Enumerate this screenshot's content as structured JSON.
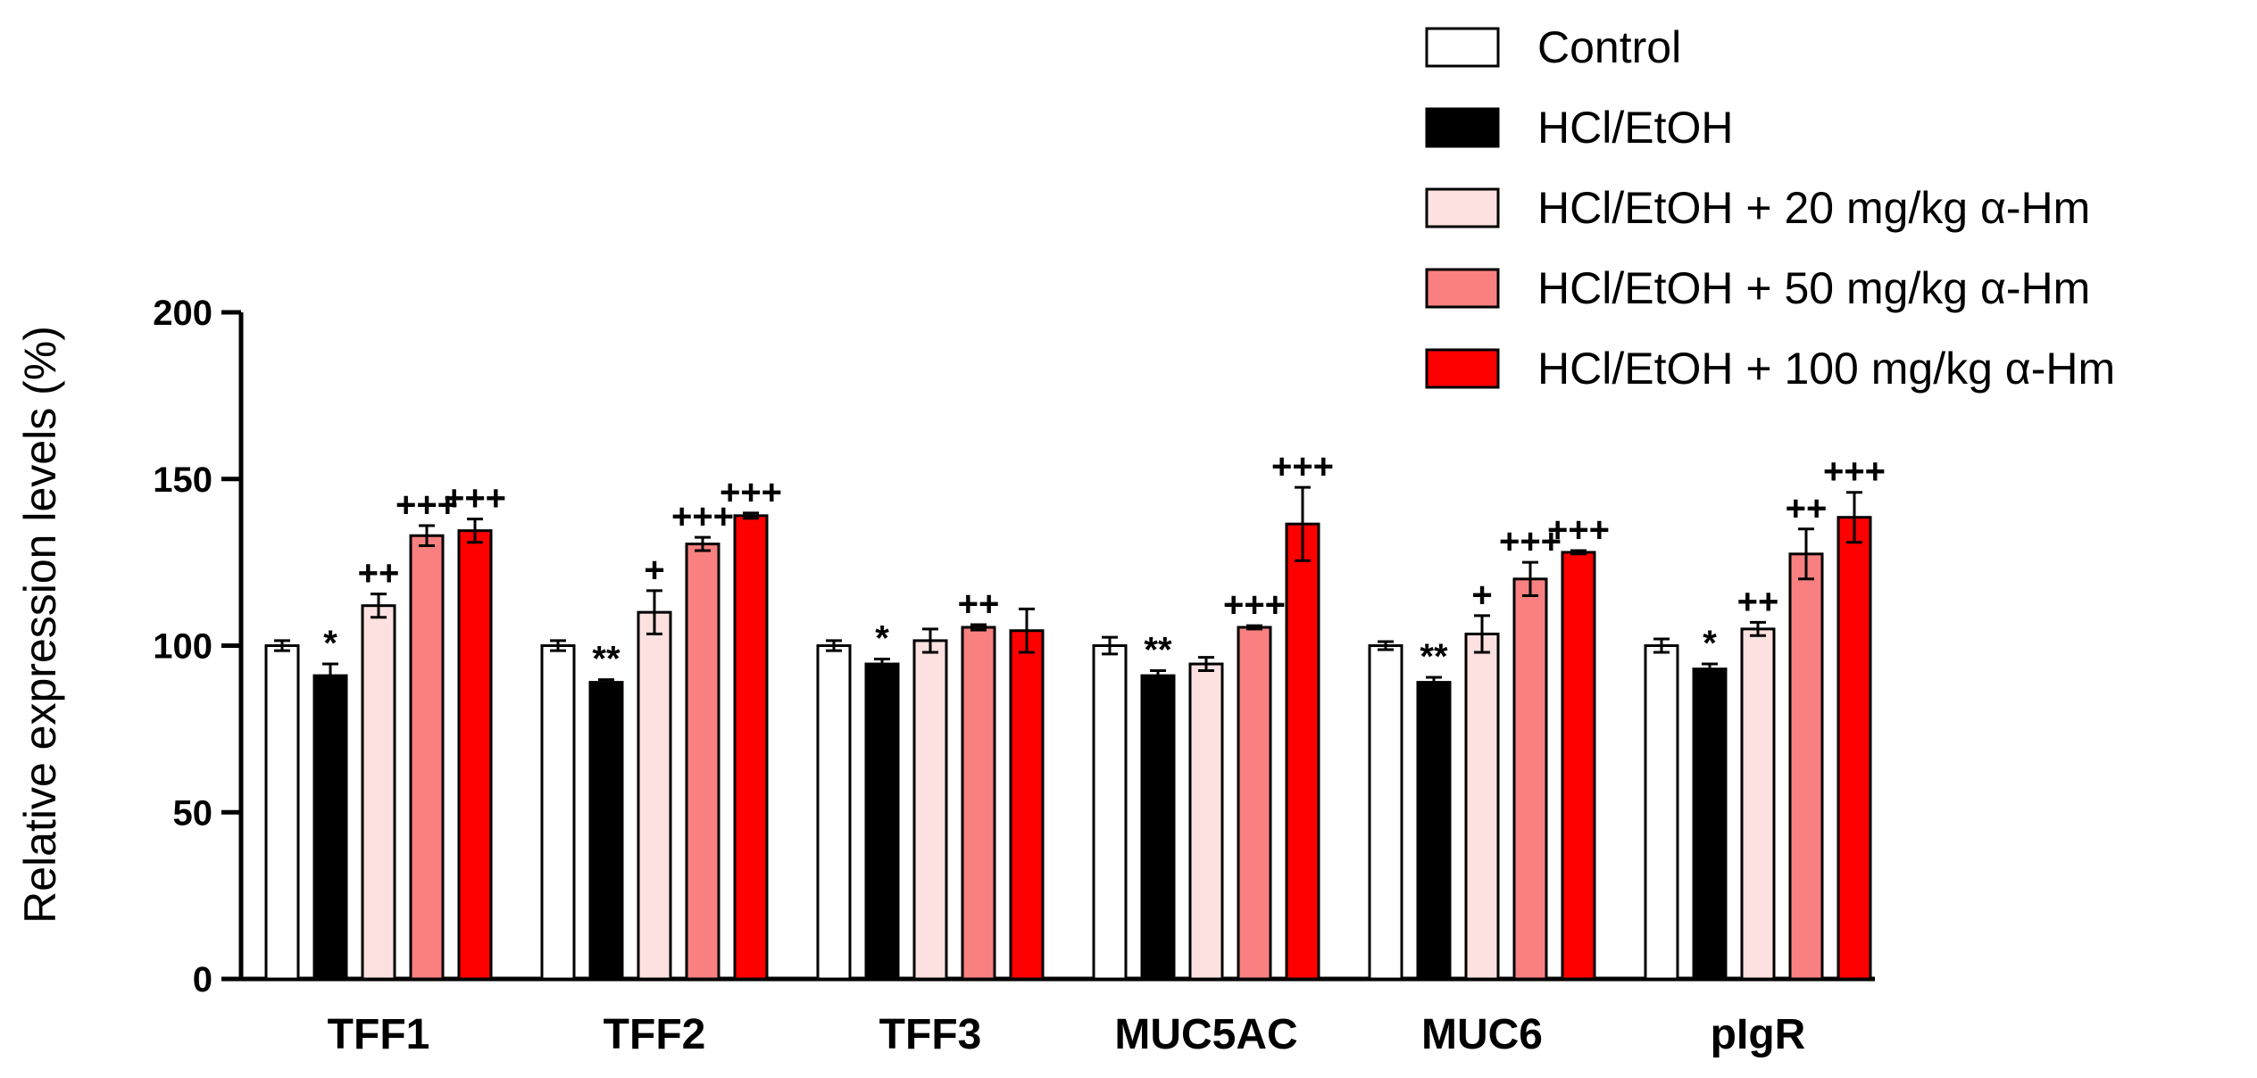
{
  "chart_data": {
    "type": "bar",
    "title": "",
    "xlabel": "",
    "ylabel": "Relative expression levels (%)",
    "ylim": [
      0,
      200
    ],
    "yticks": [
      "0",
      "50",
      "100",
      "150",
      "200"
    ],
    "categories": [
      "TFF1",
      "TFF2",
      "TFF3",
      "MUC5AC",
      "MUC6",
      "pIgR"
    ],
    "series": [
      {
        "name": "Control",
        "color": "#ffffff",
        "values": [
          100,
          100,
          100,
          100,
          100,
          100
        ],
        "errors": [
          1.5,
          1.5,
          1.5,
          2.5,
          1.2,
          2
        ],
        "labels": [
          "",
          "",
          "",
          "",
          "",
          ""
        ]
      },
      {
        "name": "HCl/EtOH",
        "color": "#000000",
        "values": [
          91,
          89,
          94.5,
          91,
          89,
          93
        ],
        "errors": [
          3.5,
          0.8,
          1.5,
          1.5,
          1.5,
          1.5
        ],
        "labels": [
          "*",
          "**",
          "*",
          "**",
          "**",
          "*"
        ]
      },
      {
        "name": "HCl/EtOH + 20 mg/kg α-Hm",
        "color": "#fde1e1",
        "values": [
          112,
          110,
          101.5,
          94.5,
          103.5,
          105
        ],
        "errors": [
          3.5,
          6.5,
          3.5,
          2,
          5.5,
          2
        ],
        "labels": [
          "++",
          "+",
          "",
          "",
          "+",
          "++"
        ]
      },
      {
        "name": "HCl/EtOH + 50 mg/kg α-Hm",
        "color": "#f98080",
        "values": [
          133,
          130.5,
          105.5,
          105.5,
          120,
          127.5
        ],
        "errors": [
          3,
          2,
          0.8,
          0.5,
          5,
          7.5
        ],
        "labels": [
          "+++",
          "+++",
          "++",
          "+++",
          "+++",
          "++"
        ]
      },
      {
        "name": "HCl/EtOH + 100 mg/kg α-Hm",
        "color": "#ff0000",
        "values": [
          134.5,
          139,
          104.5,
          136.5,
          128,
          138.5
        ],
        "errors": [
          3.5,
          0.8,
          6.5,
          11,
          0.5,
          7.5
        ],
        "labels": [
          "+++",
          "+++",
          "",
          "+++",
          "+++",
          "+++"
        ]
      }
    ],
    "legend_position": "top-right"
  }
}
